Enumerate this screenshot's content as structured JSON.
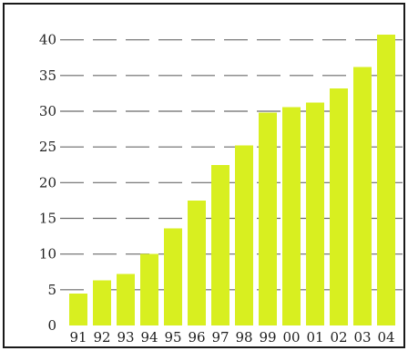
{
  "chart_data": {
    "type": "bar",
    "title": "",
    "xlabel": "",
    "ylabel": "",
    "categories": [
      "91",
      "92",
      "93",
      "94",
      "95",
      "96",
      "97",
      "98",
      "99",
      "00",
      "01",
      "02",
      "03",
      "04"
    ],
    "values": [
      4.5,
      6.3,
      7.2,
      10.0,
      13.6,
      17.5,
      22.5,
      25.2,
      29.8,
      30.6,
      31.2,
      33.2,
      36.2,
      40.7
    ],
    "ylim": [
      0,
      42
    ],
    "yticks": [
      0,
      5,
      10,
      15,
      20,
      25,
      30,
      35,
      40
    ],
    "ytick_labels": [
      "0",
      "5",
      "10",
      "15",
      "20",
      "25",
      "30",
      "35",
      "40"
    ],
    "grid": "horizontal dashed",
    "legend": "none",
    "colors": {
      "bar": "#d8ef20",
      "grid": "#6a6a6a",
      "text": "#222222",
      "frame": "#1a1a1a"
    }
  }
}
